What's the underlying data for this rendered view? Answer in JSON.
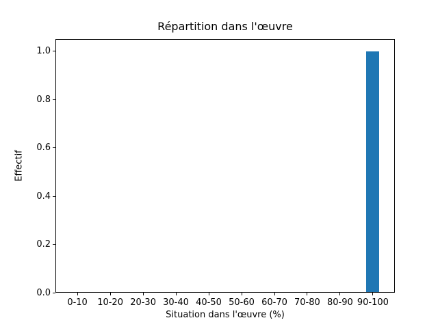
{
  "chart_data": {
    "type": "bar",
    "title": "Répartition dans l'œuvre",
    "xlabel": "Situation dans l'œuvre (%)",
    "ylabel": "Effectif",
    "categories": [
      "0-10",
      "10-20",
      "20-30",
      "30-40",
      "40-50",
      "50-60",
      "60-70",
      "70-80",
      "80-90",
      "90-100"
    ],
    "values": [
      0,
      0,
      0,
      0,
      0,
      0,
      0,
      0,
      0,
      1
    ],
    "yticks": [
      0.0,
      0.2,
      0.4,
      0.6,
      0.8,
      1.0
    ],
    "ytick_labels": [
      "0.0",
      "0.2",
      "0.4",
      "0.6",
      "0.8",
      "1.0"
    ],
    "ylim": [
      0,
      1.05
    ],
    "bar_width_fraction": 0.4,
    "bar_color": "#1f77b4",
    "axis_color": "#000000",
    "text_color": "#000000",
    "background_color": "#ffffff",
    "grid": false,
    "legend": "none"
  }
}
